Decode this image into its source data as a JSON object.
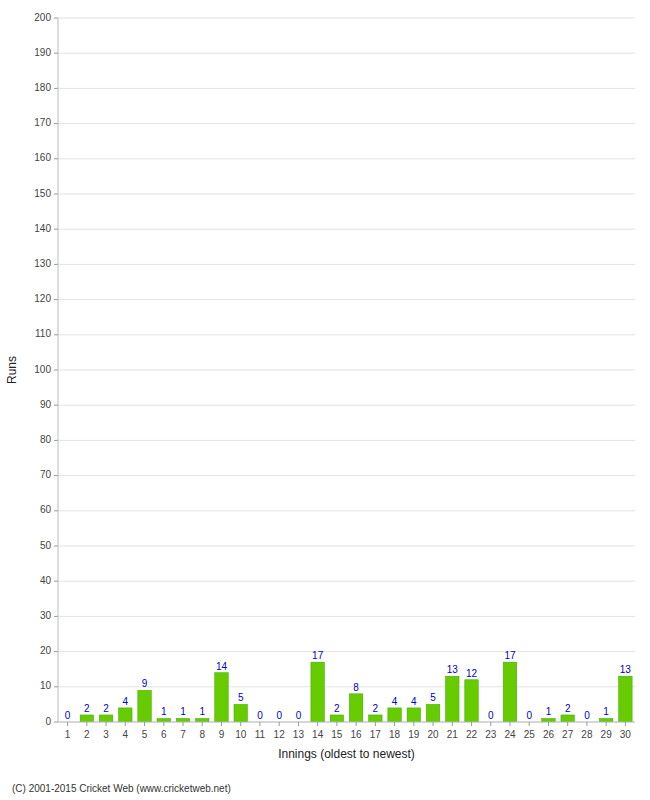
{
  "chart_data": {
    "type": "bar",
    "categories": [
      "1",
      "2",
      "3",
      "4",
      "5",
      "6",
      "7",
      "8",
      "9",
      "10",
      "11",
      "12",
      "13",
      "14",
      "15",
      "16",
      "17",
      "18",
      "19",
      "20",
      "21",
      "22",
      "23",
      "24",
      "25",
      "26",
      "27",
      "28",
      "29",
      "30"
    ],
    "values": [
      0,
      2,
      2,
      4,
      9,
      1,
      1,
      1,
      14,
      5,
      0,
      0,
      0,
      17,
      2,
      8,
      2,
      4,
      4,
      5,
      13,
      12,
      0,
      17,
      0,
      1,
      2,
      0,
      1,
      13
    ],
    "color": "#66cc00",
    "x_label": "Innings (oldest to newest)",
    "y_label": "Runs",
    "annotations": [
      "(C) 2001-2015 Cricket Web (www.cricketweb.net)"
    ],
    "ylim": [
      0,
      200
    ],
    "yticks": [
      0,
      10,
      20,
      30,
      40,
      50,
      60,
      70,
      80,
      90,
      100,
      110,
      120,
      130,
      140,
      150,
      160,
      170,
      180,
      190,
      200
    ],
    "grid": true,
    "data_labels": true
  }
}
